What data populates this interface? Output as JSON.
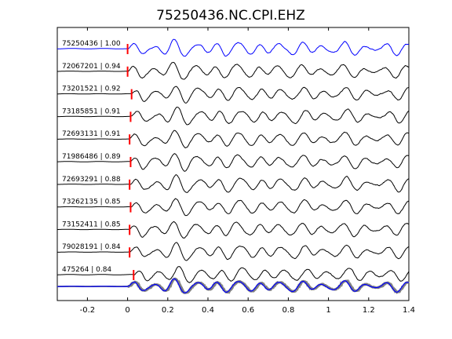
{
  "chart_data": {
    "type": "line",
    "title": "75250436.NC.CPI.EHZ",
    "xlabel": "",
    "ylabel": "",
    "xlim": [
      -0.35,
      1.4
    ],
    "xticks": [
      -0.2,
      0,
      0.2,
      0.4,
      0.6,
      0.8,
      1,
      1.2,
      1.4
    ],
    "xtick_labels": [
      "-0.2",
      "0",
      "0.2",
      "0.4",
      "0.6",
      "0.8",
      "1",
      "1.2",
      "1.4"
    ],
    "grid": false,
    "legend": "none",
    "colors": {
      "reference": "#0000ff",
      "trace": "#000000",
      "pick": "#ff0000",
      "stack": "#808080"
    },
    "series": [
      {
        "label": "75250436 | 1.00",
        "pick_time": 0.0,
        "role": "reference"
      },
      {
        "label": "72067201 | 0.94",
        "pick_time": 0.0,
        "role": "trace"
      },
      {
        "label": "73201521 | 0.92",
        "pick_time": 0.02,
        "role": "trace"
      },
      {
        "label": "73185851 | 0.91",
        "pick_time": 0.015,
        "role": "trace"
      },
      {
        "label": "72693131 | 0.91",
        "pick_time": 0.01,
        "role": "trace"
      },
      {
        "label": "71986486 | 0.89",
        "pick_time": 0.015,
        "role": "trace"
      },
      {
        "label": "72693291 | 0.88",
        "pick_time": 0.01,
        "role": "trace"
      },
      {
        "label": "73262135 | 0.85",
        "pick_time": 0.015,
        "role": "trace"
      },
      {
        "label": "73152411 | 0.85",
        "pick_time": 0.01,
        "role": "trace"
      },
      {
        "label": "79028191 | 0.84",
        "pick_time": 0.01,
        "role": "trace"
      },
      {
        "label": "475264 | 0.84",
        "pick_time": 0.03,
        "role": "trace"
      }
    ],
    "stack": {
      "onset": 0.0,
      "overlay_count": 11
    }
  }
}
